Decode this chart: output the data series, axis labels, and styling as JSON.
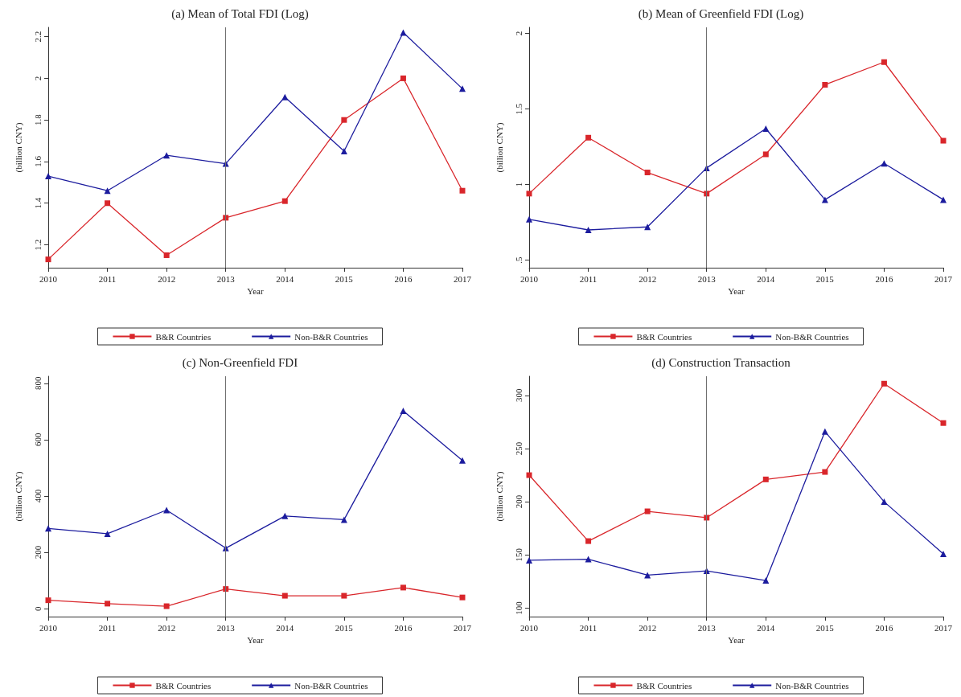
{
  "chart_data": [
    {
      "type": "line",
      "title": "(a) Mean of Total FDI (Log)",
      "xlabel": "Year",
      "ylabel": "(billion CNY)",
      "x": [
        2010,
        2011,
        2012,
        2013,
        2014,
        2015,
        2016,
        2017
      ],
      "xlim": [
        2010,
        2017
      ],
      "xticks": [
        2010,
        2011,
        2012,
        2013,
        2014,
        2015,
        2016,
        2017
      ],
      "ylim": [
        1.09,
        2.245
      ],
      "yticks": [
        1.2,
        1.4,
        1.6,
        1.8,
        2,
        2.2
      ],
      "grid": false,
      "legend": "bottom",
      "line_style": "solid",
      "series": [
        {
          "name": "B&R Countries",
          "color": "#d9262b",
          "marker": "square",
          "values": [
            1.13,
            1.4,
            1.15,
            1.33,
            1.41,
            1.8,
            2.0,
            1.46
          ]
        },
        {
          "name": "Non-B&R Countries",
          "color": "#1c1c9e",
          "marker": "triangle",
          "values": [
            1.53,
            1.46,
            1.63,
            1.59,
            1.91,
            1.65,
            2.22,
            1.95
          ]
        }
      ],
      "ref_lines": [
        {
          "axis": "x",
          "value": 2013,
          "color": "#707070"
        }
      ]
    },
    {
      "type": "line",
      "title": "(b) Mean of Greenfield FDI (Log)",
      "xlabel": "Year",
      "ylabel": "(billion CNY)",
      "x": [
        2010,
        2011,
        2012,
        2013,
        2014,
        2015,
        2016,
        2017
      ],
      "xlim": [
        2010,
        2017
      ],
      "xticks": [
        2010,
        2011,
        2012,
        2013,
        2014,
        2015,
        2016,
        2017
      ],
      "ylim": [
        0.45,
        2.04
      ],
      "yticks": [
        {
          "value": 0.5,
          "label": ".5"
        },
        1,
        1.5,
        2
      ],
      "grid": false,
      "legend": "bottom",
      "line_style": "solid",
      "series": [
        {
          "name": "B&R Countries",
          "color": "#d9262b",
          "marker": "square",
          "values": [
            0.94,
            1.31,
            1.08,
            0.94,
            1.2,
            1.66,
            1.81,
            1.29
          ]
        },
        {
          "name": "Non-B&R Countries",
          "color": "#1c1c9e",
          "marker": "triangle",
          "values": [
            0.77,
            0.7,
            0.72,
            1.11,
            1.37,
            0.9,
            1.14,
            0.9
          ]
        }
      ],
      "ref_lines": [
        {
          "axis": "x",
          "value": 2013,
          "color": "#707070"
        }
      ]
    },
    {
      "type": "line",
      "title": "(c) Non-Greenfield FDI",
      "xlabel": "Year",
      "ylabel": "(billion CNY)",
      "x": [
        2010,
        2011,
        2012,
        2013,
        2014,
        2015,
        2016,
        2017
      ],
      "xlim": [
        2010,
        2017
      ],
      "xticks": [
        2010,
        2011,
        2012,
        2013,
        2014,
        2015,
        2016,
        2017
      ],
      "ylim": [
        -28,
        825
      ],
      "yticks": [
        0,
        200,
        400,
        600,
        800
      ],
      "grid": false,
      "legend": "bottom",
      "line_style": "solid",
      "series": [
        {
          "name": "B&R Countries",
          "color": "#d9262b",
          "marker": "square",
          "values": [
            30,
            18,
            9,
            70,
            46,
            46,
            75,
            40
          ]
        },
        {
          "name": "Non-B&R Countries",
          "color": "#1c1c9e",
          "marker": "triangle",
          "values": [
            285,
            266,
            350,
            215,
            329,
            316,
            702,
            526
          ]
        }
      ],
      "ref_lines": [
        {
          "axis": "x",
          "value": 2013,
          "color": "#707070"
        }
      ]
    },
    {
      "type": "line",
      "title": "(d) Construction Transaction",
      "xlabel": "Year",
      "ylabel": "(billion CNY)",
      "x": [
        2010,
        2011,
        2012,
        2013,
        2014,
        2015,
        2016,
        2017
      ],
      "xlim": [
        2010,
        2017
      ],
      "xticks": [
        2010,
        2011,
        2012,
        2013,
        2014,
        2015,
        2016,
        2017
      ],
      "ylim": [
        92,
        318
      ],
      "yticks": [
        100,
        150,
        200,
        250,
        300
      ],
      "grid": false,
      "legend": "bottom",
      "line_style": "solid",
      "series": [
        {
          "name": "B&R Countries",
          "color": "#d9262b",
          "marker": "square",
          "values": [
            225,
            163,
            191,
            185,
            221,
            228,
            311,
            274
          ]
        },
        {
          "name": "Non-B&R Countries",
          "color": "#1c1c9e",
          "marker": "triangle",
          "values": [
            145,
            146,
            131,
            135,
            126,
            266,
            200,
            151
          ]
        }
      ],
      "ref_lines": [
        {
          "axis": "x",
          "value": 2013,
          "color": "#707070"
        }
      ]
    }
  ]
}
